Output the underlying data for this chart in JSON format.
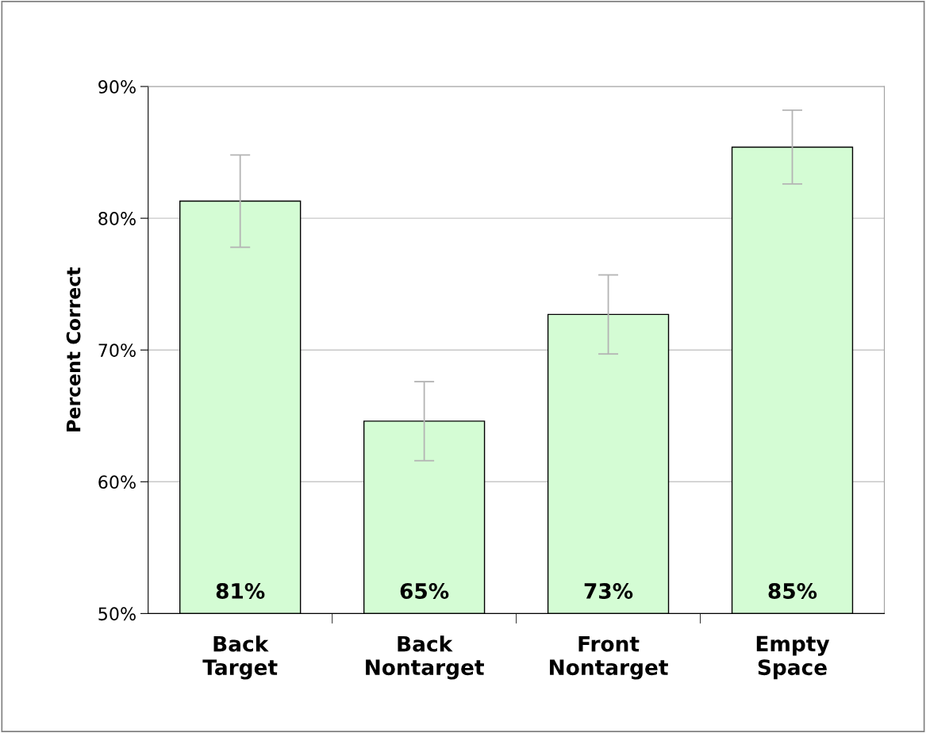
{
  "chart_data": {
    "type": "bar",
    "ylabel": "Percent Correct",
    "categories": [
      "Back\nTarget",
      "Back\nNontarget",
      "Front\nNontarget",
      "Empty\nSpace"
    ],
    "values": [
      81.3,
      64.6,
      72.7,
      85.4
    ],
    "errors": [
      3.5,
      3.0,
      3.0,
      2.8
    ],
    "value_labels": [
      "81%",
      "65%",
      "73%",
      "85%"
    ],
    "color": "#d4fcd4",
    "ylim": [
      50,
      90
    ],
    "yticks": [
      {
        "value": 50,
        "label": "50%"
      },
      {
        "value": 60,
        "label": "60%"
      },
      {
        "value": 70,
        "label": "70%"
      },
      {
        "value": 80,
        "label": "80%"
      },
      {
        "value": 90,
        "label": "90%"
      }
    ],
    "grid": "y",
    "legend": false
  }
}
